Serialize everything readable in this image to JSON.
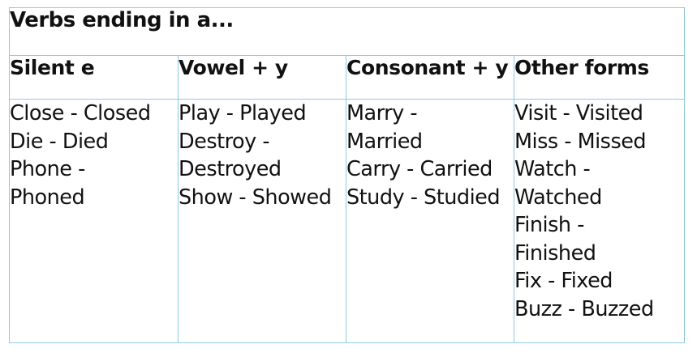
{
  "table": {
    "title": "Verbs ending in a...",
    "headers": [
      "Silent e",
      "Vowel + y",
      "Consonant + y",
      "Other forms"
    ],
    "columns": [
      [
        "Close - Closed",
        "Die - Died",
        "Phone -",
        "Phoned"
      ],
      [
        "Play - Played",
        "Destroy -",
        "Destroyed",
        "Show - Showed"
      ],
      [
        "Marry -",
        "Married",
        "Carry - Carried",
        "Study - Studied"
      ],
      [
        "Visit - Visited",
        "Miss - Missed",
        "Watch -",
        "Watched",
        "Finish -",
        "Finished",
        "Fix - Fixed",
        "Buzz - Buzzed"
      ]
    ]
  },
  "colors": {
    "border": "#8ec9e2",
    "text": "#111111",
    "background": "#ffffff"
  }
}
